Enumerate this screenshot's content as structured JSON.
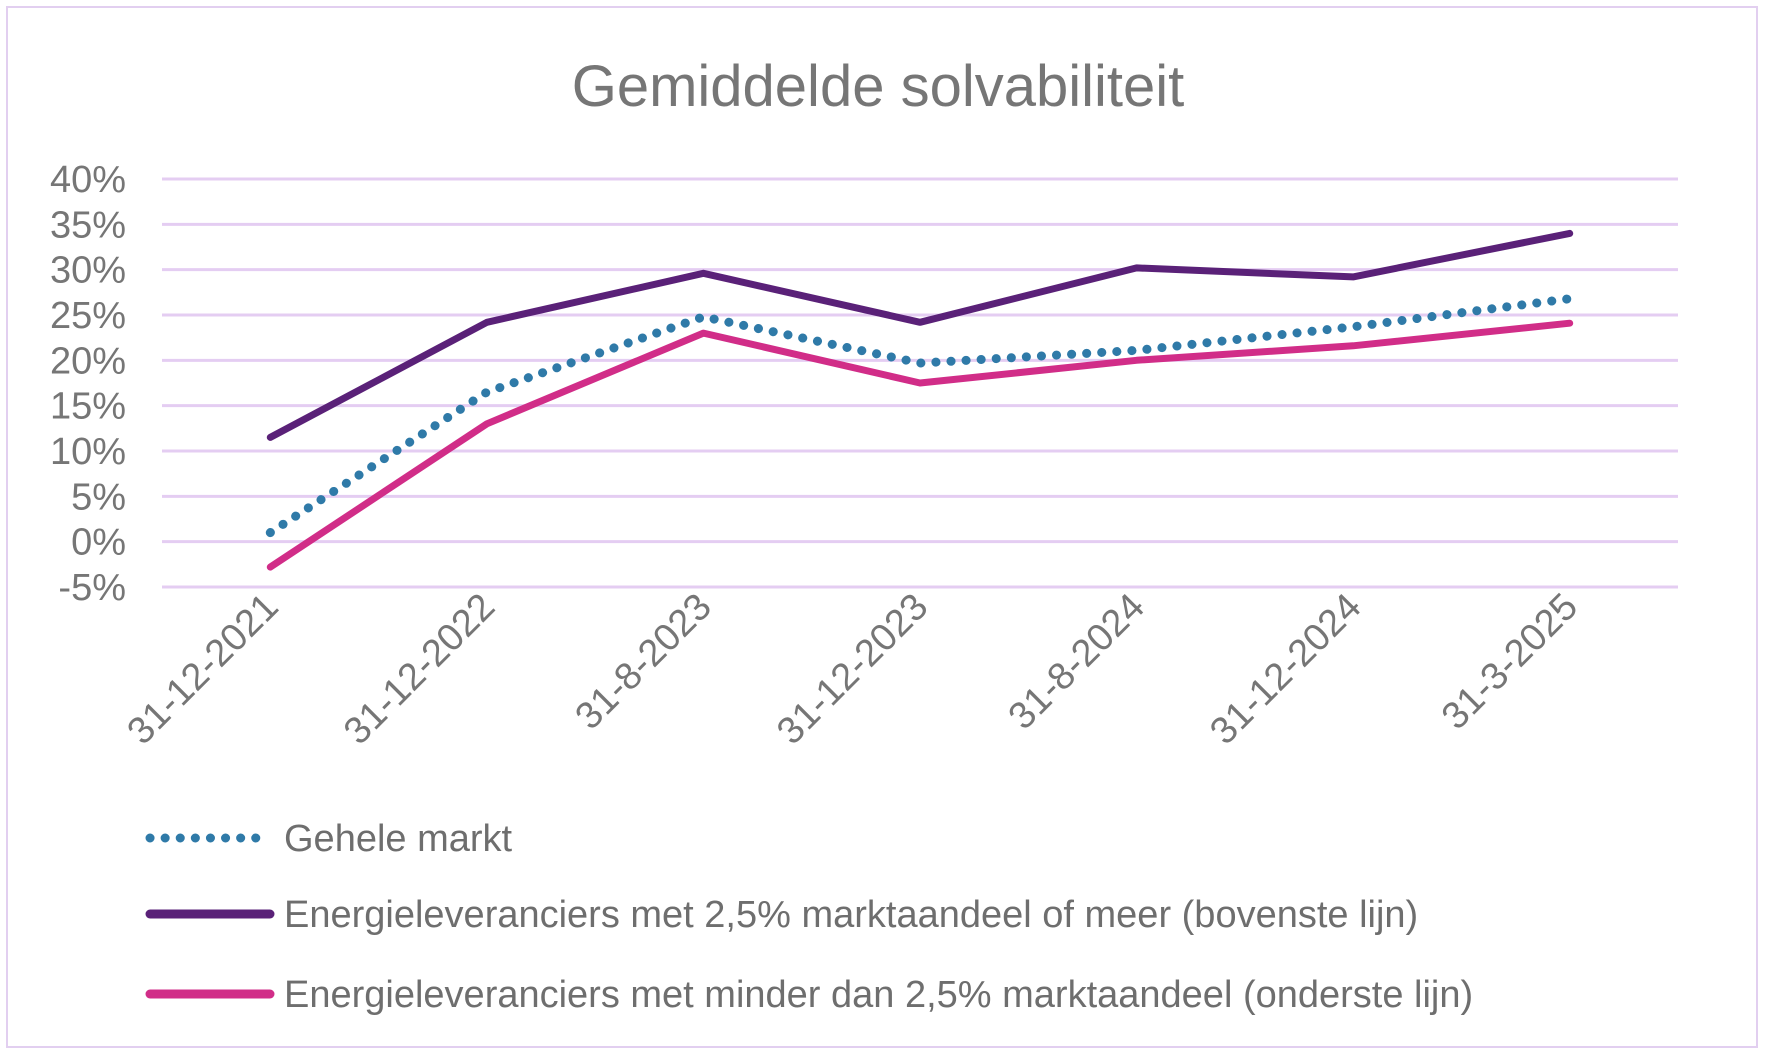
{
  "chart_data": {
    "type": "line",
    "title": "Gemiddelde solvabiliteit",
    "xlabel": "",
    "ylabel": "",
    "categories": [
      "31-12-2021",
      "31-12-2022",
      "31-8-2023",
      "31-12-2023",
      "31-8-2024",
      "31-12-2024",
      "31-3-2025"
    ],
    "y_ticks": [
      "40%",
      "35%",
      "30%",
      "25%",
      "20%",
      "15%",
      "10%",
      "5%",
      "0%",
      "-5%"
    ],
    "ylim": [
      -5,
      40
    ],
    "y_unit": "%",
    "grid": true,
    "legend_position": "bottom",
    "series": [
      {
        "name": "Energieleveranciers met 2,5% marktaandeel of meer (bovenste lijn)",
        "values": [
          11.5,
          24.2,
          29.6,
          24.2,
          30.2,
          29.2,
          34
        ],
        "color": "#5a2178",
        "style": "solid"
      },
      {
        "name": "Gehele markt",
        "values": [
          1,
          16.5,
          24.8,
          19.7,
          21.1,
          23.7,
          26.8
        ],
        "color": "#2f7aa8",
        "style": "dotted"
      },
      {
        "name": "Energieleveranciers met minder dan 2,5% marktaandeel (onderste lijn)",
        "values": [
          -2.8,
          13,
          23,
          17.5,
          20,
          21.6,
          24.1
        ],
        "color": "#d12d88",
        "style": "solid"
      }
    ],
    "legend_order": [
      1,
      0,
      2
    ]
  }
}
